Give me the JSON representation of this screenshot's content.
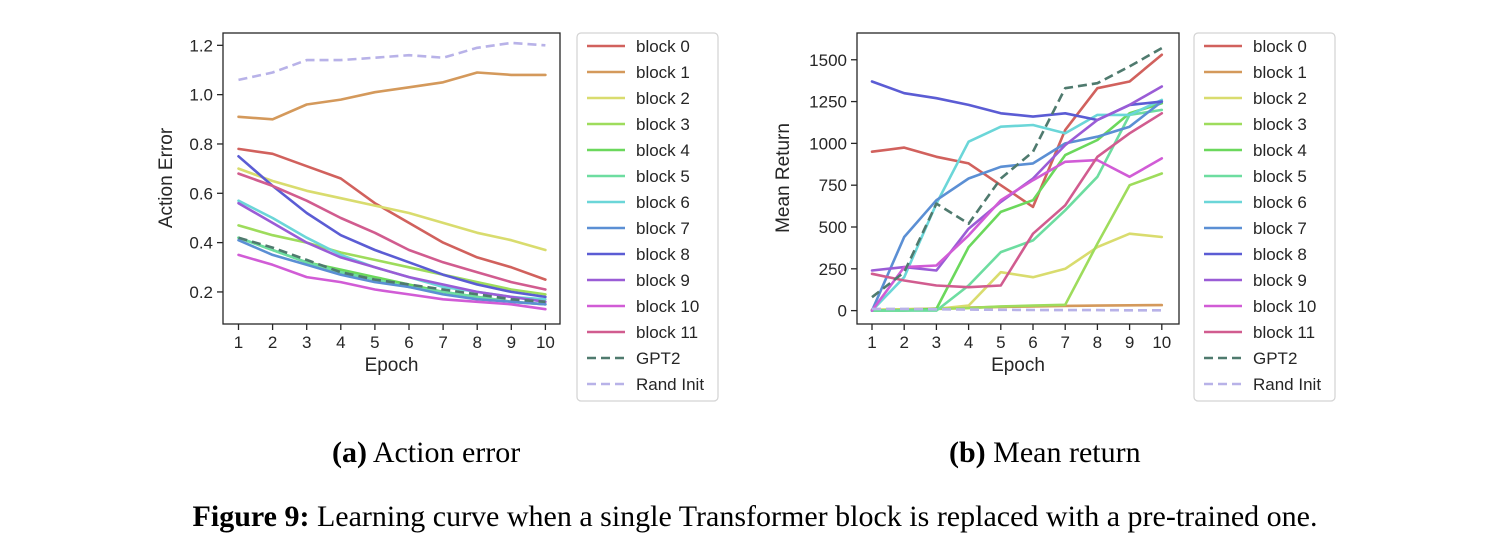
{
  "series_names": [
    "block 0",
    "block 1",
    "block 2",
    "block 3",
    "block 4",
    "block 5",
    "block 6",
    "block 7",
    "block 8",
    "block 9",
    "block 10",
    "block 11",
    "GPT2",
    "Rand Init"
  ],
  "series_colors": [
    "#d1615d",
    "#d4995b",
    "#d9dc6e",
    "#9edc5c",
    "#6bd85c",
    "#6ddda0",
    "#6bd6d8",
    "#5b8fd4",
    "#5b5cd4",
    "#9a5cd6",
    "#d15cd6",
    "#d15c8f",
    "#4f7a6e",
    "#b8b2e8"
  ],
  "charts": [
    {
      "id": "action-error",
      "type": "line",
      "xlabel": "Epoch",
      "ylabel": "Action Error",
      "x": [
        1,
        2,
        3,
        4,
        5,
        6,
        7,
        8,
        9,
        10
      ],
      "ylim": [
        0.07,
        1.25
      ],
      "yticks": [
        0.2,
        0.4,
        0.6,
        0.8,
        1.0,
        1.2
      ],
      "ytick_labels": [
        "0.2",
        "0.4",
        "0.6",
        "0.8",
        "1.0",
        "1.2"
      ],
      "caption_label": "(a)",
      "caption_text": " Action error",
      "series": [
        {
          "name": "block 0",
          "values": [
            0.78,
            0.76,
            0.71,
            0.66,
            0.56,
            0.48,
            0.4,
            0.34,
            0.3,
            0.25
          ]
        },
        {
          "name": "block 1",
          "values": [
            0.91,
            0.9,
            0.96,
            0.98,
            1.01,
            1.03,
            1.05,
            1.09,
            1.08,
            1.08
          ]
        },
        {
          "name": "block 2",
          "values": [
            0.7,
            0.65,
            0.61,
            0.58,
            0.55,
            0.52,
            0.48,
            0.44,
            0.41,
            0.37
          ]
        },
        {
          "name": "block 3",
          "values": [
            0.47,
            0.43,
            0.4,
            0.36,
            0.33,
            0.3,
            0.27,
            0.24,
            0.21,
            0.19
          ]
        },
        {
          "name": "block 4",
          "values": [
            0.42,
            0.37,
            0.32,
            0.29,
            0.26,
            0.23,
            0.2,
            0.18,
            0.16,
            0.15
          ]
        },
        {
          "name": "block 5",
          "values": [
            0.42,
            0.37,
            0.32,
            0.28,
            0.25,
            0.22,
            0.2,
            0.18,
            0.16,
            0.15
          ]
        },
        {
          "name": "block 6",
          "values": [
            0.57,
            0.5,
            0.42,
            0.35,
            0.3,
            0.26,
            0.22,
            0.2,
            0.18,
            0.17
          ]
        },
        {
          "name": "block 7",
          "values": [
            0.41,
            0.35,
            0.31,
            0.27,
            0.24,
            0.22,
            0.19,
            0.17,
            0.16,
            0.15
          ]
        },
        {
          "name": "block 8",
          "values": [
            0.75,
            0.63,
            0.52,
            0.43,
            0.37,
            0.32,
            0.27,
            0.23,
            0.2,
            0.18
          ]
        },
        {
          "name": "block 9",
          "values": [
            0.56,
            0.48,
            0.4,
            0.34,
            0.3,
            0.26,
            0.23,
            0.2,
            0.18,
            0.16
          ]
        },
        {
          "name": "block 10",
          "values": [
            0.35,
            0.31,
            0.26,
            0.24,
            0.21,
            0.19,
            0.17,
            0.16,
            0.15,
            0.13
          ]
        },
        {
          "name": "block 11",
          "values": [
            0.68,
            0.63,
            0.57,
            0.5,
            0.44,
            0.37,
            0.32,
            0.28,
            0.24,
            0.21
          ]
        },
        {
          "name": "GPT2",
          "values": [
            0.42,
            0.38,
            0.33,
            0.28,
            0.25,
            0.23,
            0.21,
            0.19,
            0.17,
            0.16
          ]
        },
        {
          "name": "Rand Init",
          "values": [
            1.06,
            1.09,
            1.14,
            1.14,
            1.15,
            1.16,
            1.15,
            1.19,
            1.21,
            1.2
          ]
        }
      ]
    },
    {
      "id": "mean-return",
      "type": "line",
      "xlabel": "Epoch",
      "ylabel": "Mean Return",
      "x": [
        1,
        2,
        3,
        4,
        5,
        6,
        7,
        8,
        9,
        10
      ],
      "ylim": [
        -80,
        1660
      ],
      "yticks": [
        0,
        250,
        500,
        750,
        1000,
        1250,
        1500
      ],
      "ytick_labels": [
        "0",
        "250",
        "500",
        "750",
        "1000",
        "1250",
        "1500"
      ],
      "caption_label": "(b)",
      "caption_text": " Mean return",
      "series": [
        {
          "name": "block 0",
          "values": [
            950,
            975,
            920,
            880,
            750,
            620,
            1080,
            1330,
            1370,
            1530
          ]
        },
        {
          "name": "block 1",
          "values": [
            5,
            8,
            12,
            18,
            22,
            25,
            28,
            30,
            32,
            33
          ]
        },
        {
          "name": "block 2",
          "values": [
            5,
            8,
            10,
            30,
            230,
            200,
            250,
            380,
            460,
            440
          ]
        },
        {
          "name": "block 3",
          "values": [
            0,
            5,
            10,
            15,
            25,
            30,
            35,
            400,
            750,
            820
          ]
        },
        {
          "name": "block 4",
          "values": [
            0,
            0,
            10,
            380,
            590,
            660,
            930,
            1020,
            1180,
            1240
          ]
        },
        {
          "name": "block 5",
          "values": [
            0,
            0,
            0,
            150,
            350,
            420,
            600,
            800,
            1170,
            1200
          ]
        },
        {
          "name": "block 6",
          "values": [
            0,
            200,
            640,
            1010,
            1100,
            1110,
            1060,
            1170,
            1170,
            1260
          ]
        },
        {
          "name": "block 7",
          "values": [
            0,
            440,
            660,
            790,
            860,
            880,
            1000,
            1040,
            1100,
            1250
          ]
        },
        {
          "name": "block 8",
          "values": [
            1370,
            1300,
            1270,
            1230,
            1180,
            1160,
            1180,
            1140,
            1230,
            1250
          ]
        },
        {
          "name": "block 9",
          "values": [
            240,
            260,
            240,
            490,
            650,
            790,
            990,
            1140,
            1230,
            1340
          ]
        },
        {
          "name": "block 10",
          "values": [
            0,
            260,
            270,
            450,
            660,
            780,
            890,
            900,
            800,
            910
          ]
        },
        {
          "name": "block 11",
          "values": [
            220,
            180,
            150,
            140,
            150,
            460,
            630,
            920,
            1060,
            1180
          ]
        },
        {
          "name": "GPT2",
          "values": [
            80,
            230,
            640,
            520,
            790,
            950,
            1330,
            1360,
            1460,
            1570
          ]
        },
        {
          "name": "Rand Init",
          "values": [
            10,
            10,
            8,
            6,
            5,
            4,
            3,
            3,
            2,
            2
          ]
        }
      ]
    }
  ],
  "figure_caption": {
    "label": "Figure 9:",
    "text": " Learning curve when a single Transformer block is replaced with a pre-trained one."
  }
}
